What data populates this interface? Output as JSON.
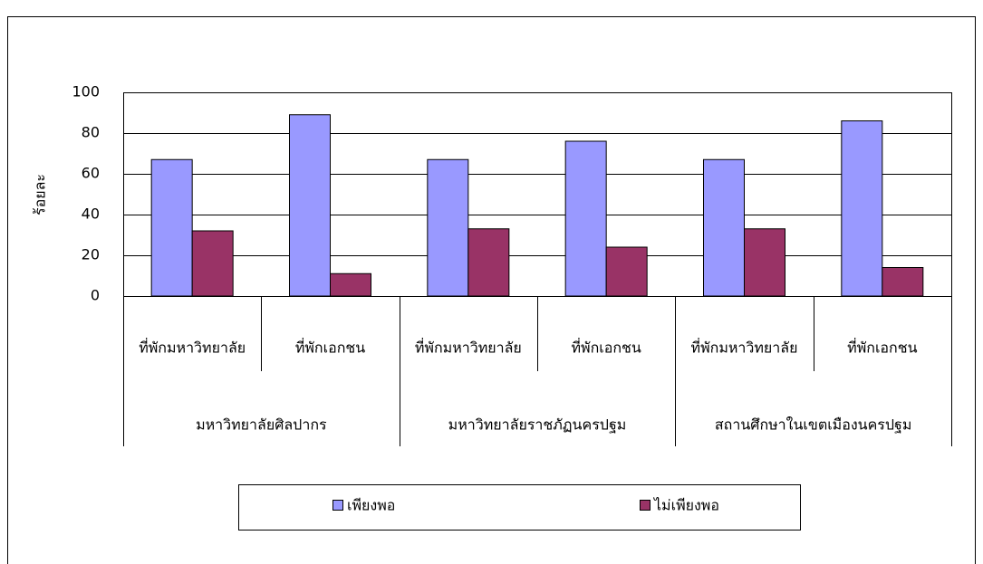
{
  "chart_data": {
    "type": "bar",
    "y_label": "ร้อยละ",
    "categories": [
      "ที่พักมหาวิทยาลัย",
      "ที่พักเอกชน",
      "ที่พักมหาวิทยาลัย",
      "ที่พักเอกชน",
      "ที่พักมหาวิทยาลัย",
      "ที่พักเอกชน"
    ],
    "category_groups": [
      "มหาวิทยาลัยศิลปากร",
      "มหาวิทยาลัยราชภัฏนครปฐม",
      "สถานศึกษาในเขตเมืองนครปฐม"
    ],
    "series": [
      {
        "name": "เพียงพอ",
        "color": "#9999ff",
        "values": [
          67,
          89,
          67,
          76,
          67,
          86
        ]
      },
      {
        "name": "ไม่เพียงพอ",
        "color": "#993366",
        "values": [
          32,
          11,
          33,
          24,
          33,
          14
        ]
      }
    ],
    "ylim": [
      0,
      100
    ],
    "yticks": [
      0,
      20,
      40,
      60,
      80,
      100
    ],
    "grid": true,
    "legend": "bottom"
  }
}
